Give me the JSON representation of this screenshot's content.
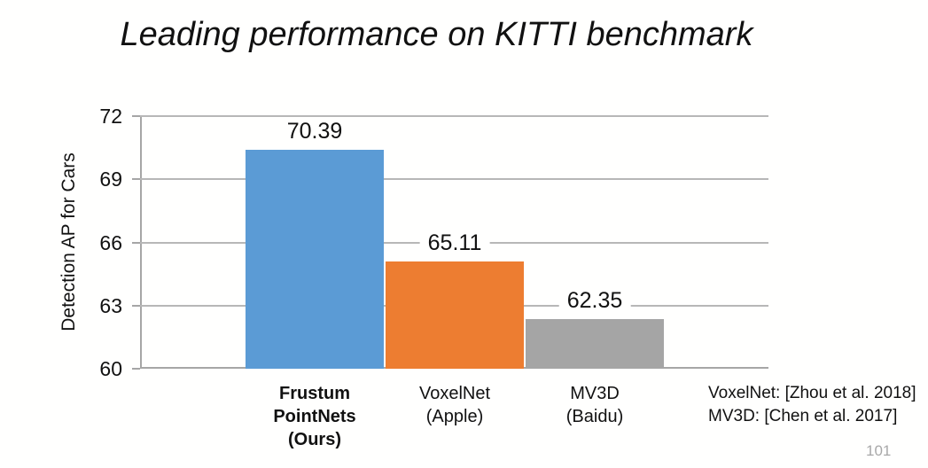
{
  "slide": {
    "title": "Leading performance on KITTI benchmark",
    "page_number": "101",
    "annotations": [
      "VoxelNet: [Zhou et al. 2018]",
      "MV3D: [Chen et al. 2017]"
    ]
  },
  "chart_data": {
    "type": "bar",
    "title": "Leading performance on KITTI benchmark",
    "xlabel": "",
    "ylabel": "Detection AP for Cars",
    "ylim": [
      60,
      72
    ],
    "yticks": [
      72,
      69,
      66,
      63,
      60
    ],
    "grid": true,
    "legend": false,
    "categories": [
      "Frustum PointNets (Ours)",
      "VoxelNet (Apple)",
      "MV3D (Baidu)"
    ],
    "category_lines": [
      [
        "Frustum",
        "PointNets",
        "(Ours)"
      ],
      [
        "VoxelNet",
        "(Apple)"
      ],
      [
        "MV3D",
        "(Baidu)"
      ]
    ],
    "category_bold": [
      true,
      false,
      false
    ],
    "values": [
      70.39,
      65.11,
      62.35
    ],
    "data_labels": [
      "70.39",
      "65.11",
      "62.35"
    ],
    "bar_colors": [
      "#5B9BD5",
      "#ED7D31",
      "#A5A5A5"
    ],
    "gridline_color": "#B7B7B7",
    "axis_color": "#A6A6A6",
    "label_color": "#111111"
  }
}
